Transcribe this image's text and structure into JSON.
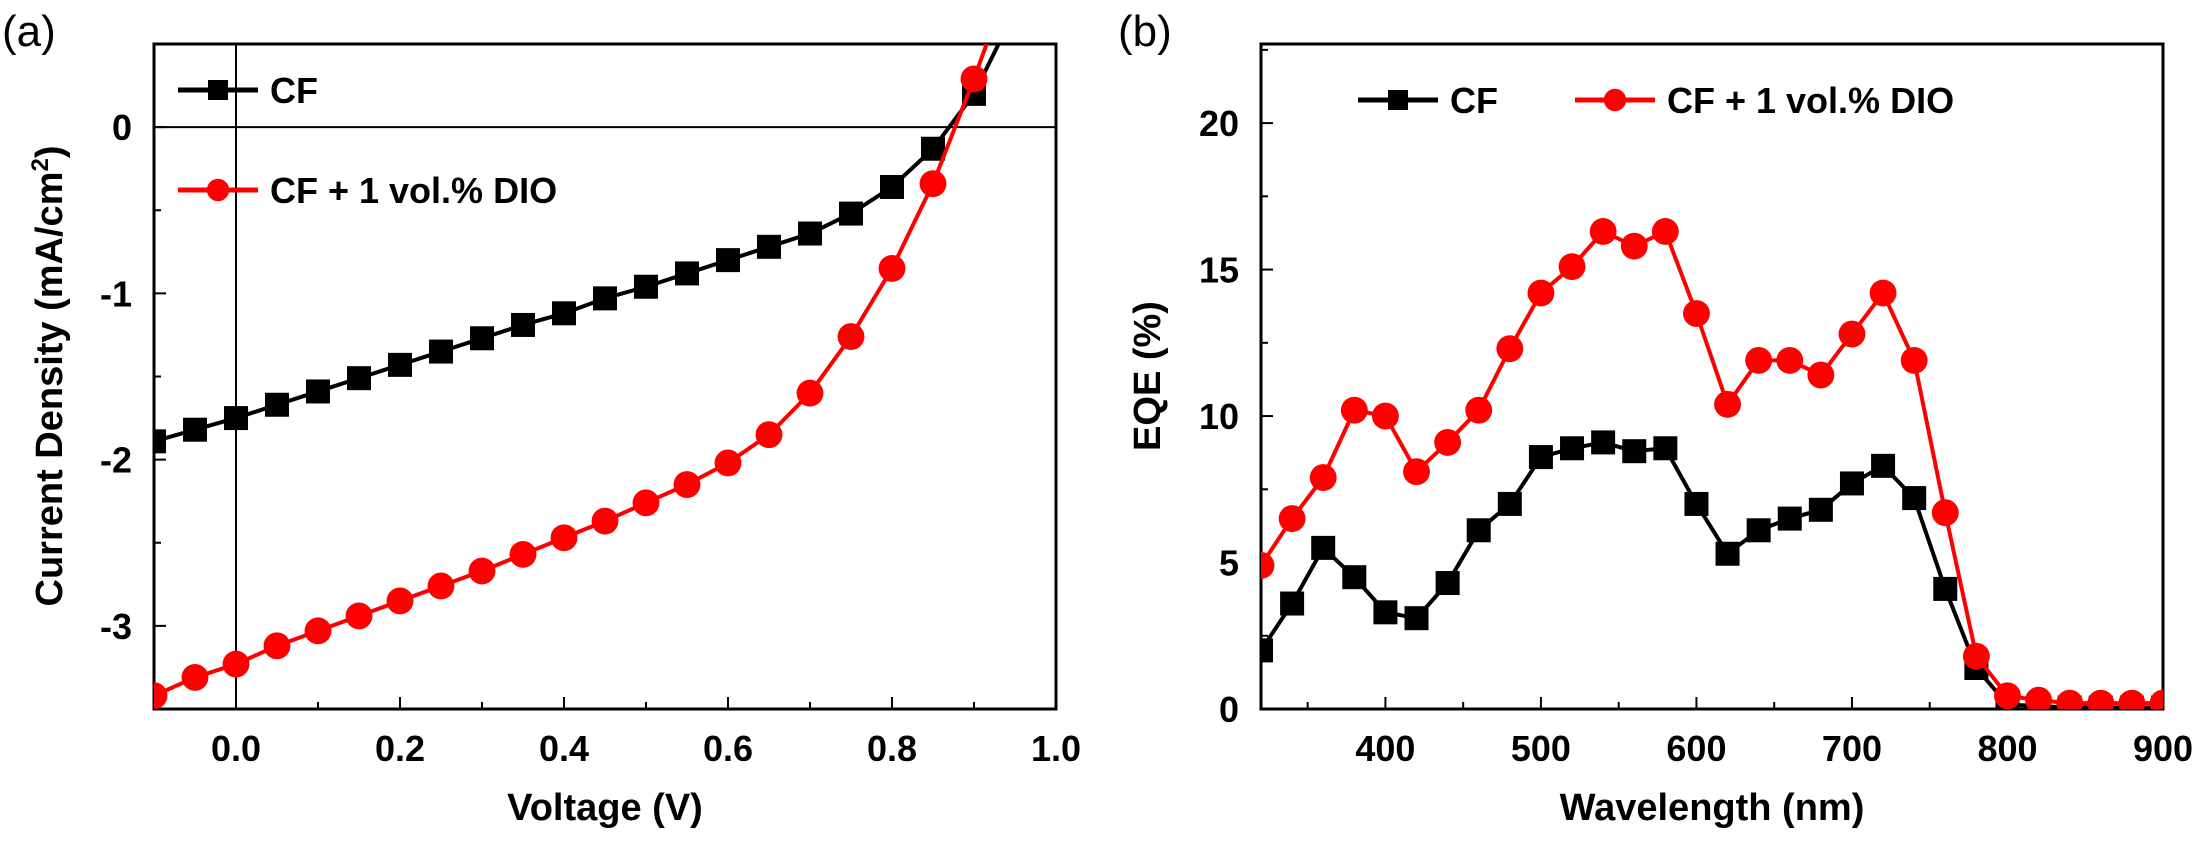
{
  "chart_data": [
    {
      "panel": "(a)",
      "type": "line",
      "title": "",
      "xlabel": "Voltage (V)",
      "ylabel": "Current Density (mA/cm",
      "ylabel_superscript": "2",
      "ylabel_close": ")",
      "xlim": [
        -0.1,
        1.0
      ],
      "ylim": [
        -3.5,
        0.5
      ],
      "xticks": [
        0.0,
        0.2,
        0.4,
        0.6,
        0.8,
        1.0
      ],
      "xtick_labels": [
        "0.0",
        "0.2",
        "0.4",
        "0.6",
        "0.8",
        "1.0"
      ],
      "yticks": [
        0,
        -1,
        -2,
        -3
      ],
      "ytick_labels": [
        "0",
        "-1",
        "-2",
        "-3"
      ],
      "reference_lines": {
        "x": 0,
        "y": 0
      },
      "legend": {
        "placement": "top-left",
        "orientation": "vertical"
      },
      "series": [
        {
          "name": "CF",
          "color": "#000000",
          "marker": "square",
          "x": [
            -0.1,
            -0.05,
            0.0,
            0.05,
            0.1,
            0.15,
            0.2,
            0.25,
            0.3,
            0.35,
            0.4,
            0.45,
            0.5,
            0.55,
            0.6,
            0.65,
            0.7,
            0.75,
            0.8,
            0.85,
            0.9,
            0.95
          ],
          "y": [
            -1.89,
            -1.82,
            -1.75,
            -1.67,
            -1.59,
            -1.51,
            -1.43,
            -1.35,
            -1.27,
            -1.19,
            -1.12,
            -1.03,
            -0.96,
            -0.88,
            -0.8,
            -0.72,
            -0.64,
            -0.52,
            -0.36,
            -0.13,
            0.2,
            0.7
          ]
        },
        {
          "name": "CF + 1 vol.% DIO",
          "color": "#ff0000",
          "marker": "circle",
          "x": [
            -0.1,
            -0.05,
            0.0,
            0.05,
            0.1,
            0.15,
            0.2,
            0.25,
            0.3,
            0.35,
            0.4,
            0.45,
            0.5,
            0.55,
            0.6,
            0.65,
            0.7,
            0.75,
            0.8,
            0.85,
            0.9,
            0.93
          ],
          "y": [
            -3.42,
            -3.31,
            -3.23,
            -3.12,
            -3.03,
            -2.94,
            -2.85,
            -2.76,
            -2.67,
            -2.57,
            -2.47,
            -2.37,
            -2.26,
            -2.15,
            -2.02,
            -1.85,
            -1.6,
            -1.26,
            -0.85,
            -0.34,
            0.29,
            0.7
          ]
        }
      ]
    },
    {
      "panel": "(b)",
      "type": "line",
      "title": "",
      "xlabel": "Wavelength (nm)",
      "ylabel": "EQE (%)",
      "xlim": [
        320,
        900
      ],
      "ylim": [
        0,
        22.7
      ],
      "xticks": [
        400,
        500,
        600,
        700,
        800,
        900
      ],
      "xtick_labels": [
        "400",
        "500",
        "600",
        "700",
        "800",
        "900"
      ],
      "yticks": [
        0,
        5,
        10,
        15,
        20
      ],
      "ytick_labels": [
        "0",
        "5",
        "10",
        "15",
        "20"
      ],
      "legend": {
        "placement": "top-center",
        "orientation": "horizontal"
      },
      "series": [
        {
          "name": "CF",
          "color": "#000000",
          "marker": "square",
          "x": [
            320,
            340,
            360,
            380,
            400,
            420,
            440,
            460,
            480,
            500,
            520,
            540,
            560,
            580,
            600,
            620,
            640,
            660,
            680,
            700,
            720,
            740,
            760,
            780,
            800,
            820,
            840,
            860,
            880,
            900
          ],
          "y": [
            2.0,
            3.6,
            5.5,
            4.5,
            3.3,
            3.1,
            4.3,
            6.1,
            7.0,
            8.6,
            8.9,
            9.1,
            8.8,
            8.9,
            7.0,
            5.3,
            6.1,
            6.5,
            6.8,
            7.7,
            8.3,
            7.2,
            4.1,
            1.4,
            0.15,
            0.1,
            0.05,
            0.05,
            0.05,
            0.05
          ]
        },
        {
          "name": "CF + 1 vol.% DIO",
          "color": "#ff0000",
          "marker": "circle",
          "x": [
            320,
            340,
            360,
            380,
            400,
            420,
            440,
            460,
            480,
            500,
            520,
            540,
            560,
            580,
            600,
            620,
            640,
            660,
            680,
            700,
            720,
            740,
            760,
            780,
            800,
            820,
            840,
            860,
            880,
            900
          ],
          "y": [
            4.9,
            6.5,
            7.9,
            10.2,
            10.0,
            8.1,
            9.1,
            10.2,
            12.3,
            14.2,
            15.1,
            16.3,
            15.8,
            16.3,
            13.5,
            10.4,
            11.9,
            11.9,
            11.4,
            12.8,
            14.2,
            11.9,
            6.7,
            1.8,
            0.45,
            0.3,
            0.2,
            0.2,
            0.2,
            0.2
          ]
        }
      ]
    }
  ]
}
